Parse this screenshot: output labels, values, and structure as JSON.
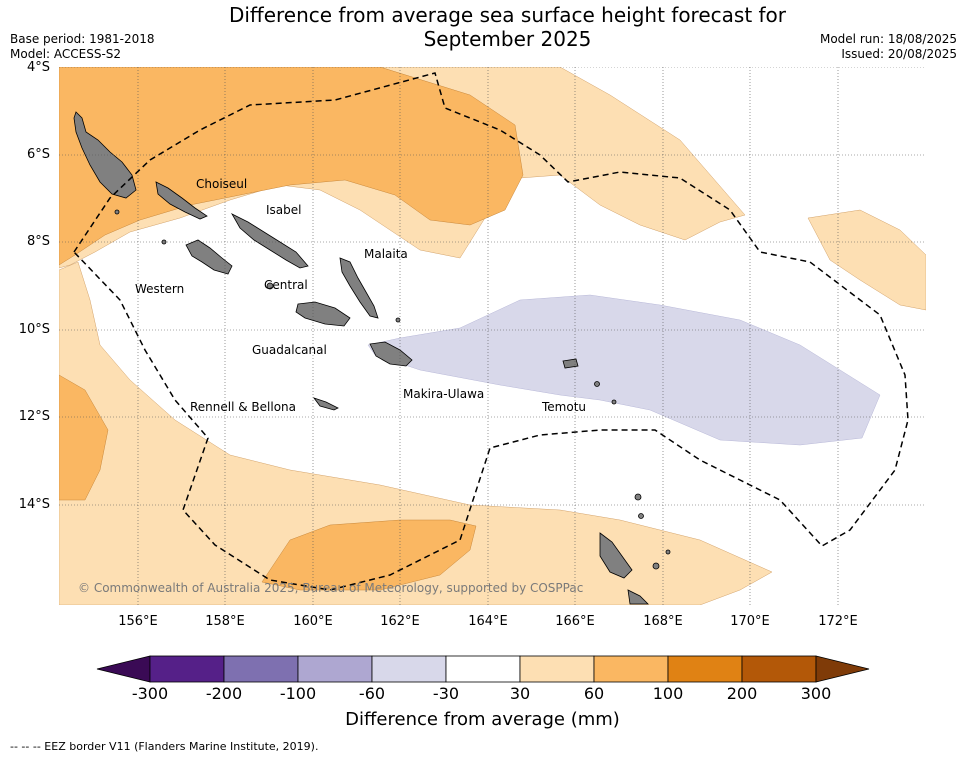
{
  "title": {
    "line1": "Difference from average sea surface height forecast for",
    "line2": "September 2025"
  },
  "meta_left": {
    "base_period": "Base period: 1981-2018",
    "model": "Model: ACCESS-S2"
  },
  "meta_right": {
    "model_run": "Model run: 18/08/2025",
    "issued": "Issued: 20/08/2025"
  },
  "axes": {
    "lat_labels": [
      "4°S",
      "6°S",
      "8°S",
      "10°S",
      "12°S",
      "14°S"
    ],
    "lon_labels": [
      "156°E",
      "158°E",
      "160°E",
      "162°E",
      "164°E",
      "166°E",
      "168°E",
      "170°E",
      "172°E"
    ]
  },
  "regions": {
    "choiseul": "Choiseul",
    "isabel": "Isabel",
    "malaita": "Malaita",
    "western": "Western",
    "central": "Central",
    "guadalcanal": "Guadalcanal",
    "rennell": "Rennell & Bellona",
    "makira": "Makira-Ulawa",
    "temotu": "Temotu"
  },
  "copyright": "© Commonwealth of Australia 2025, Bureau of Meteorology, supported by COSPPac",
  "colorbar": {
    "title": "Difference from average (mm)",
    "ticks": [
      "-300",
      "-200",
      "-100",
      "-60",
      "-30",
      "30",
      "60",
      "100",
      "200",
      "300"
    ],
    "colors": {
      "below_min": "#3a0a55",
      "c1": "#552088",
      "c2": "#7e70b0",
      "c3": "#aea7d1",
      "c4": "#d8d8ea",
      "neutral": "#ffffff",
      "p1": "#fddfb3",
      "p2": "#fab762",
      "p3": "#e08214",
      "p4": "#b35808",
      "above_max": "#7f3b08"
    }
  },
  "footnote": "--  --  -- EEZ border V11 (Flanders Marine Institute, 2019).",
  "land_color": "#808080"
}
